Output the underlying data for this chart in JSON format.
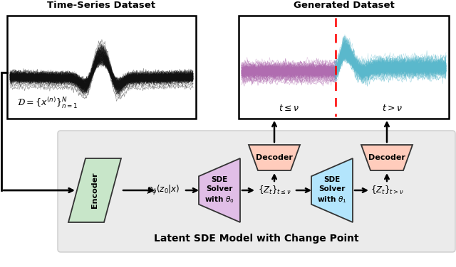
{
  "bg_color": "#ffffff",
  "panel_bg": "#ebebeb",
  "ts_title": "Time-Series Dataset",
  "gen_title": "Generated Dataset",
  "bottom_title": "Latent SDE Model with Change Point",
  "encoder_color": "#c8e6c9",
  "encoder_label": "Encoder",
  "sde0_color": "#e1bee7",
  "sde0_label": "SDE\nSolver\nwith $\\theta_0$",
  "sde1_color": "#b3e5fc",
  "sde1_label": "SDE\nSolver\nwith $\\theta_1$",
  "decoder_color": "#ffccbc",
  "decoder_label": "Decoder",
  "purple_ts_color": "#b06cb0",
  "cyan_ts_color": "#5ab8cc",
  "black_ts_color": "#111111",
  "gen_label_left": "$t \\leq \\nu$",
  "gen_label_right": "$t > \\nu$",
  "ts_math_label": "$\\mathcal{D} = \\{x^{(n)}\\}_{n=1}^N$"
}
